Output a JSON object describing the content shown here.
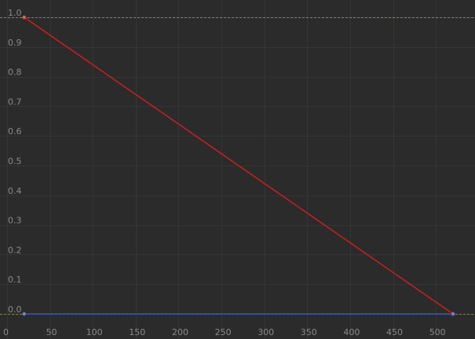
{
  "chart_data": {
    "type": "line",
    "title": "",
    "xlabel": "",
    "ylabel": "",
    "xlim": [
      -4,
      524
    ],
    "ylim": [
      -0.01,
      1.05
    ],
    "x_ticks": [
      0,
      50,
      100,
      150,
      200,
      250,
      300,
      350,
      400,
      450,
      500
    ],
    "y_ticks": [
      0.0,
      0.1,
      0.2,
      0.3,
      0.4,
      0.5,
      0.6,
      0.7,
      0.8,
      0.9,
      1.0
    ],
    "x_tick_labels": [
      "0",
      "50",
      "100",
      "150",
      "200",
      "250",
      "300",
      "350",
      "400",
      "450",
      "500"
    ],
    "y_tick_labels": [
      "0.0",
      "0.1",
      "0.2",
      "0.3",
      "0.4",
      "0.5",
      "0.6",
      "0.7",
      "0.8",
      "0.9",
      "1.0"
    ],
    "grid": true,
    "reference_lines": [
      {
        "y": 1.0,
        "color": "#7c8a4c"
      },
      {
        "y": 0.0,
        "color": "#7c8a4c"
      }
    ],
    "series": [
      {
        "color": "#d41e1e",
        "points": [
          [
            20,
            1.0
          ],
          [
            520,
            0.0
          ]
        ]
      },
      {
        "color": "#2d4fc4",
        "points": [
          [
            20,
            0.0
          ],
          [
            520,
            0.0
          ]
        ]
      }
    ]
  },
  "colors": {
    "background": "#2b2b2b",
    "grid": "#353535",
    "tick_text": "#8a8a8a",
    "point": "#8f8f8f"
  }
}
